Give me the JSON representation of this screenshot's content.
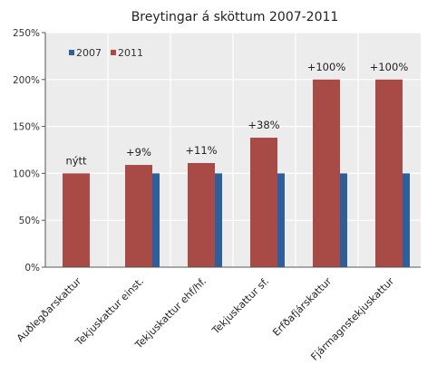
{
  "chart_data": {
    "type": "bar",
    "title": "Breytingar á sköttum 2007-2011",
    "xlabel": "",
    "ylabel": "",
    "ylim": [
      0,
      250
    ],
    "yticks": [
      0,
      50,
      100,
      150,
      200,
      250
    ],
    "ytick_labels": [
      "0%",
      "50%",
      "100%",
      "150%",
      "200%",
      "250%"
    ],
    "grid": true,
    "legend_placement": "top-left",
    "categories": [
      "Auðlegðarskattur",
      "Tekjuskattur einst.",
      "Tekjuskattur ehf/hf.",
      "Tekjuskattur sf.",
      "Erfðafjárskattur",
      "Fjármagnstekjuskattur"
    ],
    "series": [
      {
        "name": "2007",
        "color": "#2e5f9a",
        "values": [
          null,
          100,
          100,
          100,
          100,
          100
        ]
      },
      {
        "name": "2011",
        "color": "#a84a45",
        "values": [
          100,
          109,
          111,
          138,
          200,
          200
        ]
      }
    ],
    "data_labels": [
      "nýtt",
      "+9%",
      "+11%",
      "+38%",
      "+100%",
      "+100%"
    ],
    "plot_background": "#ececec"
  }
}
